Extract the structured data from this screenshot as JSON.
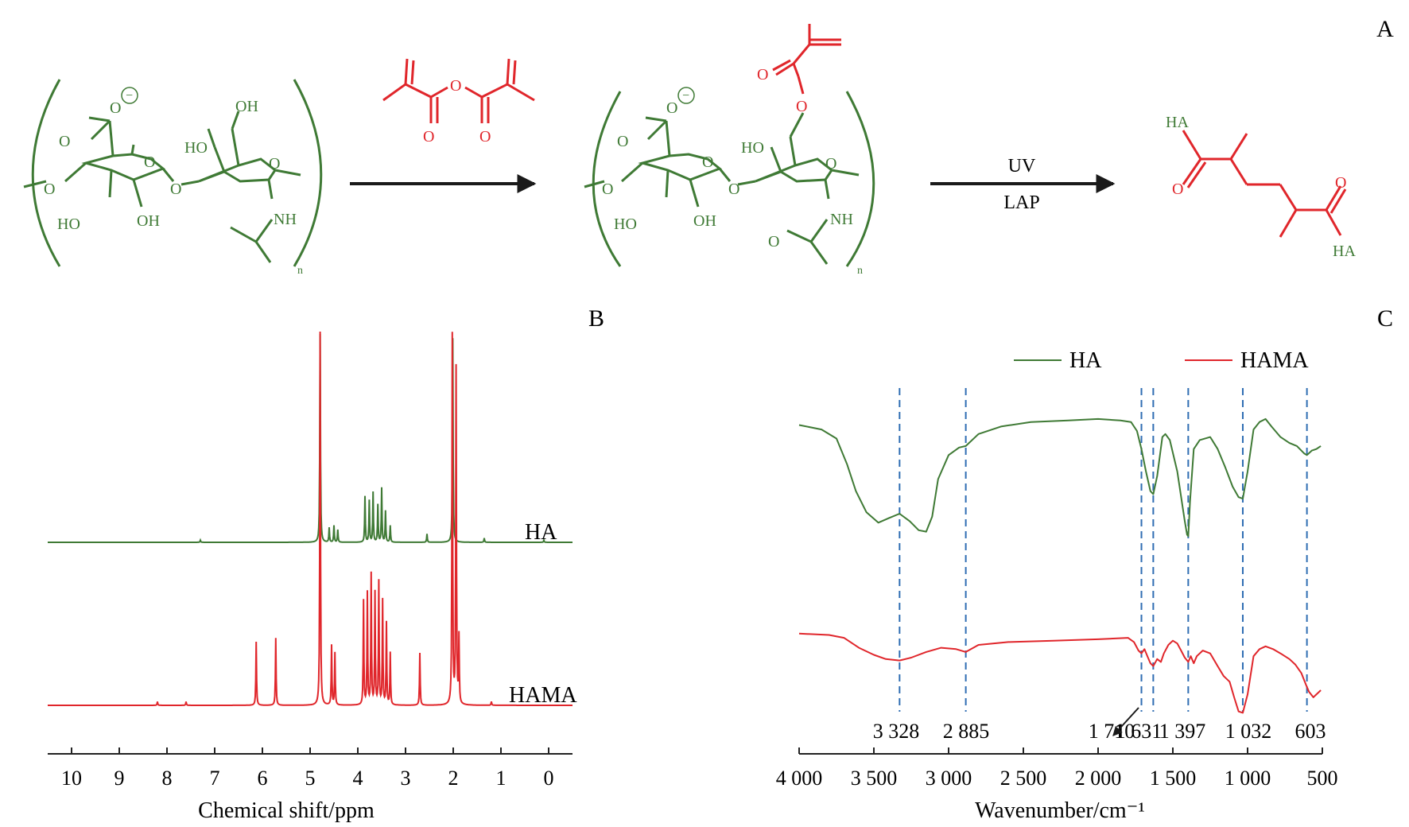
{
  "panels": {
    "a": "A",
    "b": "B",
    "c": "C"
  },
  "colors": {
    "green": "#3f7a35",
    "red": "#e0262b",
    "arrow": "#1a1a1a",
    "dash": "#2f6db3",
    "axis": "#222222"
  },
  "scheme": {
    "ha_labels": {
      "o_minus": "O",
      "minus": "−",
      "o_acid": "O",
      "o_ring1": "O",
      "o_link_left": "O",
      "o_glyco": "O",
      "o_ring2": "O",
      "oh_top": "OH",
      "ho_left": "HO",
      "ho_1": "HO",
      "oh_1": "OH",
      "nh": "NH",
      "n": "n"
    },
    "anhydride_labels": {
      "o_bridge": "O",
      "o_left": "O",
      "o_right": "O"
    },
    "hama_labels": {
      "o_minus": "O",
      "minus": "−",
      "o_acid": "O",
      "o_ring1": "O",
      "o_link_left": "O",
      "o_glyco": "O",
      "o_ring2": "O",
      "o_ester": "O",
      "o_carbonyl": "O",
      "ho_left": "HO",
      "ho_1": "HO",
      "oh_1": "OH",
      "nh": "NH",
      "o_amide": "O",
      "n": "n"
    },
    "uv_label": "UV",
    "lap_label": "LAP",
    "product_labels": {
      "ha_top": "HA",
      "o_left": "O",
      "o_right": "O",
      "ha_bottom": "HA"
    }
  },
  "chart_data": [
    {
      "type": "line",
      "panel": "B",
      "xlabel": "Chemical shift/ppm",
      "xlim": [
        10.5,
        -0.5
      ],
      "xticks": [
        10,
        9,
        8,
        7,
        6,
        5,
        4,
        3,
        2,
        1,
        0
      ],
      "series": [
        {
          "name": "HA",
          "color": "#3f7a35",
          "peaks": [
            [
              7.3,
              0.01
            ],
            [
              4.79,
              1.0
            ],
            [
              4.6,
              0.07
            ],
            [
              4.5,
              0.08
            ],
            [
              4.42,
              0.06
            ],
            [
              3.85,
              0.22
            ],
            [
              3.76,
              0.2
            ],
            [
              3.68,
              0.24
            ],
            [
              3.58,
              0.18
            ],
            [
              3.5,
              0.26
            ],
            [
              3.42,
              0.15
            ],
            [
              3.32,
              0.08
            ],
            [
              2.55,
              0.04
            ],
            [
              2.01,
              0.98
            ],
            [
              1.35,
              0.02
            ],
            [
              0.1,
              0.01
            ]
          ]
        },
        {
          "name": "HAMA",
          "color": "#e0262b",
          "peaks": [
            [
              8.2,
              0.01
            ],
            [
              7.6,
              0.01
            ],
            [
              6.13,
              0.17
            ],
            [
              5.72,
              0.18
            ],
            [
              4.79,
              1.0
            ],
            [
              4.55,
              0.16
            ],
            [
              4.48,
              0.14
            ],
            [
              3.88,
              0.28
            ],
            [
              3.8,
              0.3
            ],
            [
              3.72,
              0.35
            ],
            [
              3.64,
              0.3
            ],
            [
              3.56,
              0.33
            ],
            [
              3.48,
              0.28
            ],
            [
              3.4,
              0.22
            ],
            [
              3.32,
              0.14
            ],
            [
              2.7,
              0.14
            ],
            [
              2.02,
              0.99
            ],
            [
              1.94,
              0.9
            ],
            [
              1.88,
              0.18
            ],
            [
              1.2,
              0.01
            ]
          ]
        }
      ]
    },
    {
      "type": "line",
      "panel": "C",
      "xlabel": "Wavenumber/cm⁻¹",
      "xlim": [
        4000,
        500
      ],
      "xticks": [
        4000,
        3500,
        3000,
        2500,
        2000,
        1500,
        1000,
        500
      ],
      "xtick_labels": [
        "4 000",
        "3 500",
        "3 000",
        "2 500",
        "2 000",
        "1 500",
        "1 000",
        "500"
      ],
      "legend": "top",
      "series": [
        {
          "name": "HA",
          "color": "#3f7a35",
          "points": [
            [
              4000,
              0.86
            ],
            [
              3850,
              0.83
            ],
            [
              3750,
              0.77
            ],
            [
              3680,
              0.6
            ],
            [
              3620,
              0.42
            ],
            [
              3550,
              0.28
            ],
            [
              3470,
              0.21
            ],
            [
              3400,
              0.24
            ],
            [
              3328,
              0.27
            ],
            [
              3260,
              0.22
            ],
            [
              3200,
              0.16
            ],
            [
              3150,
              0.15
            ],
            [
              3110,
              0.25
            ],
            [
              3070,
              0.5
            ],
            [
              3000,
              0.66
            ],
            [
              2930,
              0.71
            ],
            [
              2885,
              0.72
            ],
            [
              2800,
              0.8
            ],
            [
              2650,
              0.85
            ],
            [
              2450,
              0.88
            ],
            [
              2200,
              0.89
            ],
            [
              2000,
              0.9
            ],
            [
              1850,
              0.89
            ],
            [
              1780,
              0.88
            ],
            [
              1740,
              0.82
            ],
            [
              1710,
              0.7
            ],
            [
              1680,
              0.55
            ],
            [
              1650,
              0.42
            ],
            [
              1631,
              0.4
            ],
            [
              1605,
              0.52
            ],
            [
              1570,
              0.78
            ],
            [
              1550,
              0.8
            ],
            [
              1520,
              0.76
            ],
            [
              1470,
              0.55
            ],
            [
              1420,
              0.22
            ],
            [
              1405,
              0.13
            ],
            [
              1397,
              0.12
            ],
            [
              1385,
              0.35
            ],
            [
              1360,
              0.7
            ],
            [
              1320,
              0.76
            ],
            [
              1250,
              0.78
            ],
            [
              1200,
              0.7
            ],
            [
              1150,
              0.58
            ],
            [
              1100,
              0.45
            ],
            [
              1060,
              0.38
            ],
            [
              1032,
              0.37
            ],
            [
              1000,
              0.55
            ],
            [
              960,
              0.83
            ],
            [
              920,
              0.88
            ],
            [
              880,
              0.9
            ],
            [
              840,
              0.85
            ],
            [
              780,
              0.78
            ],
            [
              720,
              0.74
            ],
            [
              670,
              0.72
            ],
            [
              620,
              0.67
            ],
            [
              603,
              0.66
            ],
            [
              570,
              0.69
            ],
            [
              540,
              0.7
            ],
            [
              510,
              0.72
            ]
          ]
        },
        {
          "name": "HAMA",
          "color": "#e0262b",
          "points": [
            [
              4000,
              0.58
            ],
            [
              3800,
              0.57
            ],
            [
              3700,
              0.55
            ],
            [
              3600,
              0.48
            ],
            [
              3500,
              0.43
            ],
            [
              3420,
              0.4
            ],
            [
              3328,
              0.39
            ],
            [
              3250,
              0.41
            ],
            [
              3150,
              0.45
            ],
            [
              3050,
              0.48
            ],
            [
              2950,
              0.47
            ],
            [
              2885,
              0.45
            ],
            [
              2800,
              0.5
            ],
            [
              2600,
              0.52
            ],
            [
              2300,
              0.53
            ],
            [
              2000,
              0.54
            ],
            [
              1800,
              0.55
            ],
            [
              1760,
              0.52
            ],
            [
              1730,
              0.46
            ],
            [
              1710,
              0.44
            ],
            [
              1690,
              0.47
            ],
            [
              1670,
              0.42
            ],
            [
              1650,
              0.37
            ],
            [
              1631,
              0.35
            ],
            [
              1605,
              0.4
            ],
            [
              1580,
              0.38
            ],
            [
              1560,
              0.44
            ],
            [
              1530,
              0.5
            ],
            [
              1500,
              0.53
            ],
            [
              1470,
              0.51
            ],
            [
              1440,
              0.45
            ],
            [
              1420,
              0.41
            ],
            [
              1397,
              0.38
            ],
            [
              1380,
              0.42
            ],
            [
              1360,
              0.37
            ],
            [
              1340,
              0.42
            ],
            [
              1300,
              0.46
            ],
            [
              1250,
              0.44
            ],
            [
              1200,
              0.35
            ],
            [
              1160,
              0.28
            ],
            [
              1120,
              0.24
            ],
            [
              1090,
              0.13
            ],
            [
              1060,
              0.03
            ],
            [
              1032,
              0.02
            ],
            [
              1000,
              0.15
            ],
            [
              960,
              0.42
            ],
            [
              920,
              0.47
            ],
            [
              880,
              0.49
            ],
            [
              830,
              0.47
            ],
            [
              780,
              0.44
            ],
            [
              720,
              0.4
            ],
            [
              680,
              0.36
            ],
            [
              640,
              0.3
            ],
            [
              610,
              0.22
            ],
            [
              590,
              0.17
            ],
            [
              560,
              0.13
            ],
            [
              530,
              0.16
            ],
            [
              510,
              0.18
            ]
          ]
        }
      ],
      "dashed_markers": [
        3328,
        2885,
        1710,
        1631,
        1397,
        1032,
        603
      ],
      "annotations": [
        "3 328",
        "2 885",
        "1 710",
        "1 631",
        "1 397",
        "1 032",
        "603"
      ]
    }
  ]
}
